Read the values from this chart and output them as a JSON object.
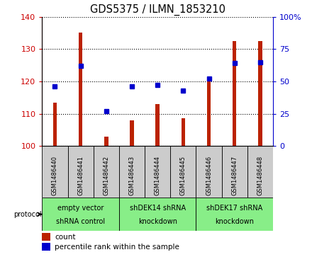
{
  "title": "GDS5375 / ILMN_1853210",
  "samples": [
    "GSM1486440",
    "GSM1486441",
    "GSM1486442",
    "GSM1486443",
    "GSM1486444",
    "GSM1486445",
    "GSM1486446",
    "GSM1486447",
    "GSM1486448"
  ],
  "counts": [
    113.5,
    135.0,
    103.0,
    108.0,
    113.0,
    108.5,
    121.0,
    132.5,
    132.5
  ],
  "percentile_ranks": [
    46,
    62,
    27,
    46,
    47,
    43,
    52,
    64,
    65
  ],
  "ylim_left": [
    100,
    140
  ],
  "ylim_right": [
    0,
    100
  ],
  "yticks_left": [
    100,
    110,
    120,
    130,
    140
  ],
  "yticks_right": [
    0,
    25,
    50,
    75,
    100
  ],
  "groups": [
    {
      "label": "empty vector\nshRNA control",
      "indices": [
        0,
        1,
        2
      ]
    },
    {
      "label": "shDEK14 shRNA\nknockdown",
      "indices": [
        3,
        4,
        5
      ]
    },
    {
      "label": "shDEK17 shRNA\nknockdown",
      "indices": [
        6,
        7,
        8
      ]
    }
  ],
  "bar_color": "#bb2200",
  "dot_color": "#0000cc",
  "grid_color": "#000000",
  "background_color": "#ffffff",
  "sample_box_color": "#cccccc",
  "group_box_color": "#88ee88",
  "label_color_left": "#cc0000",
  "label_color_right": "#0000cc",
  "bar_width": 0.15
}
